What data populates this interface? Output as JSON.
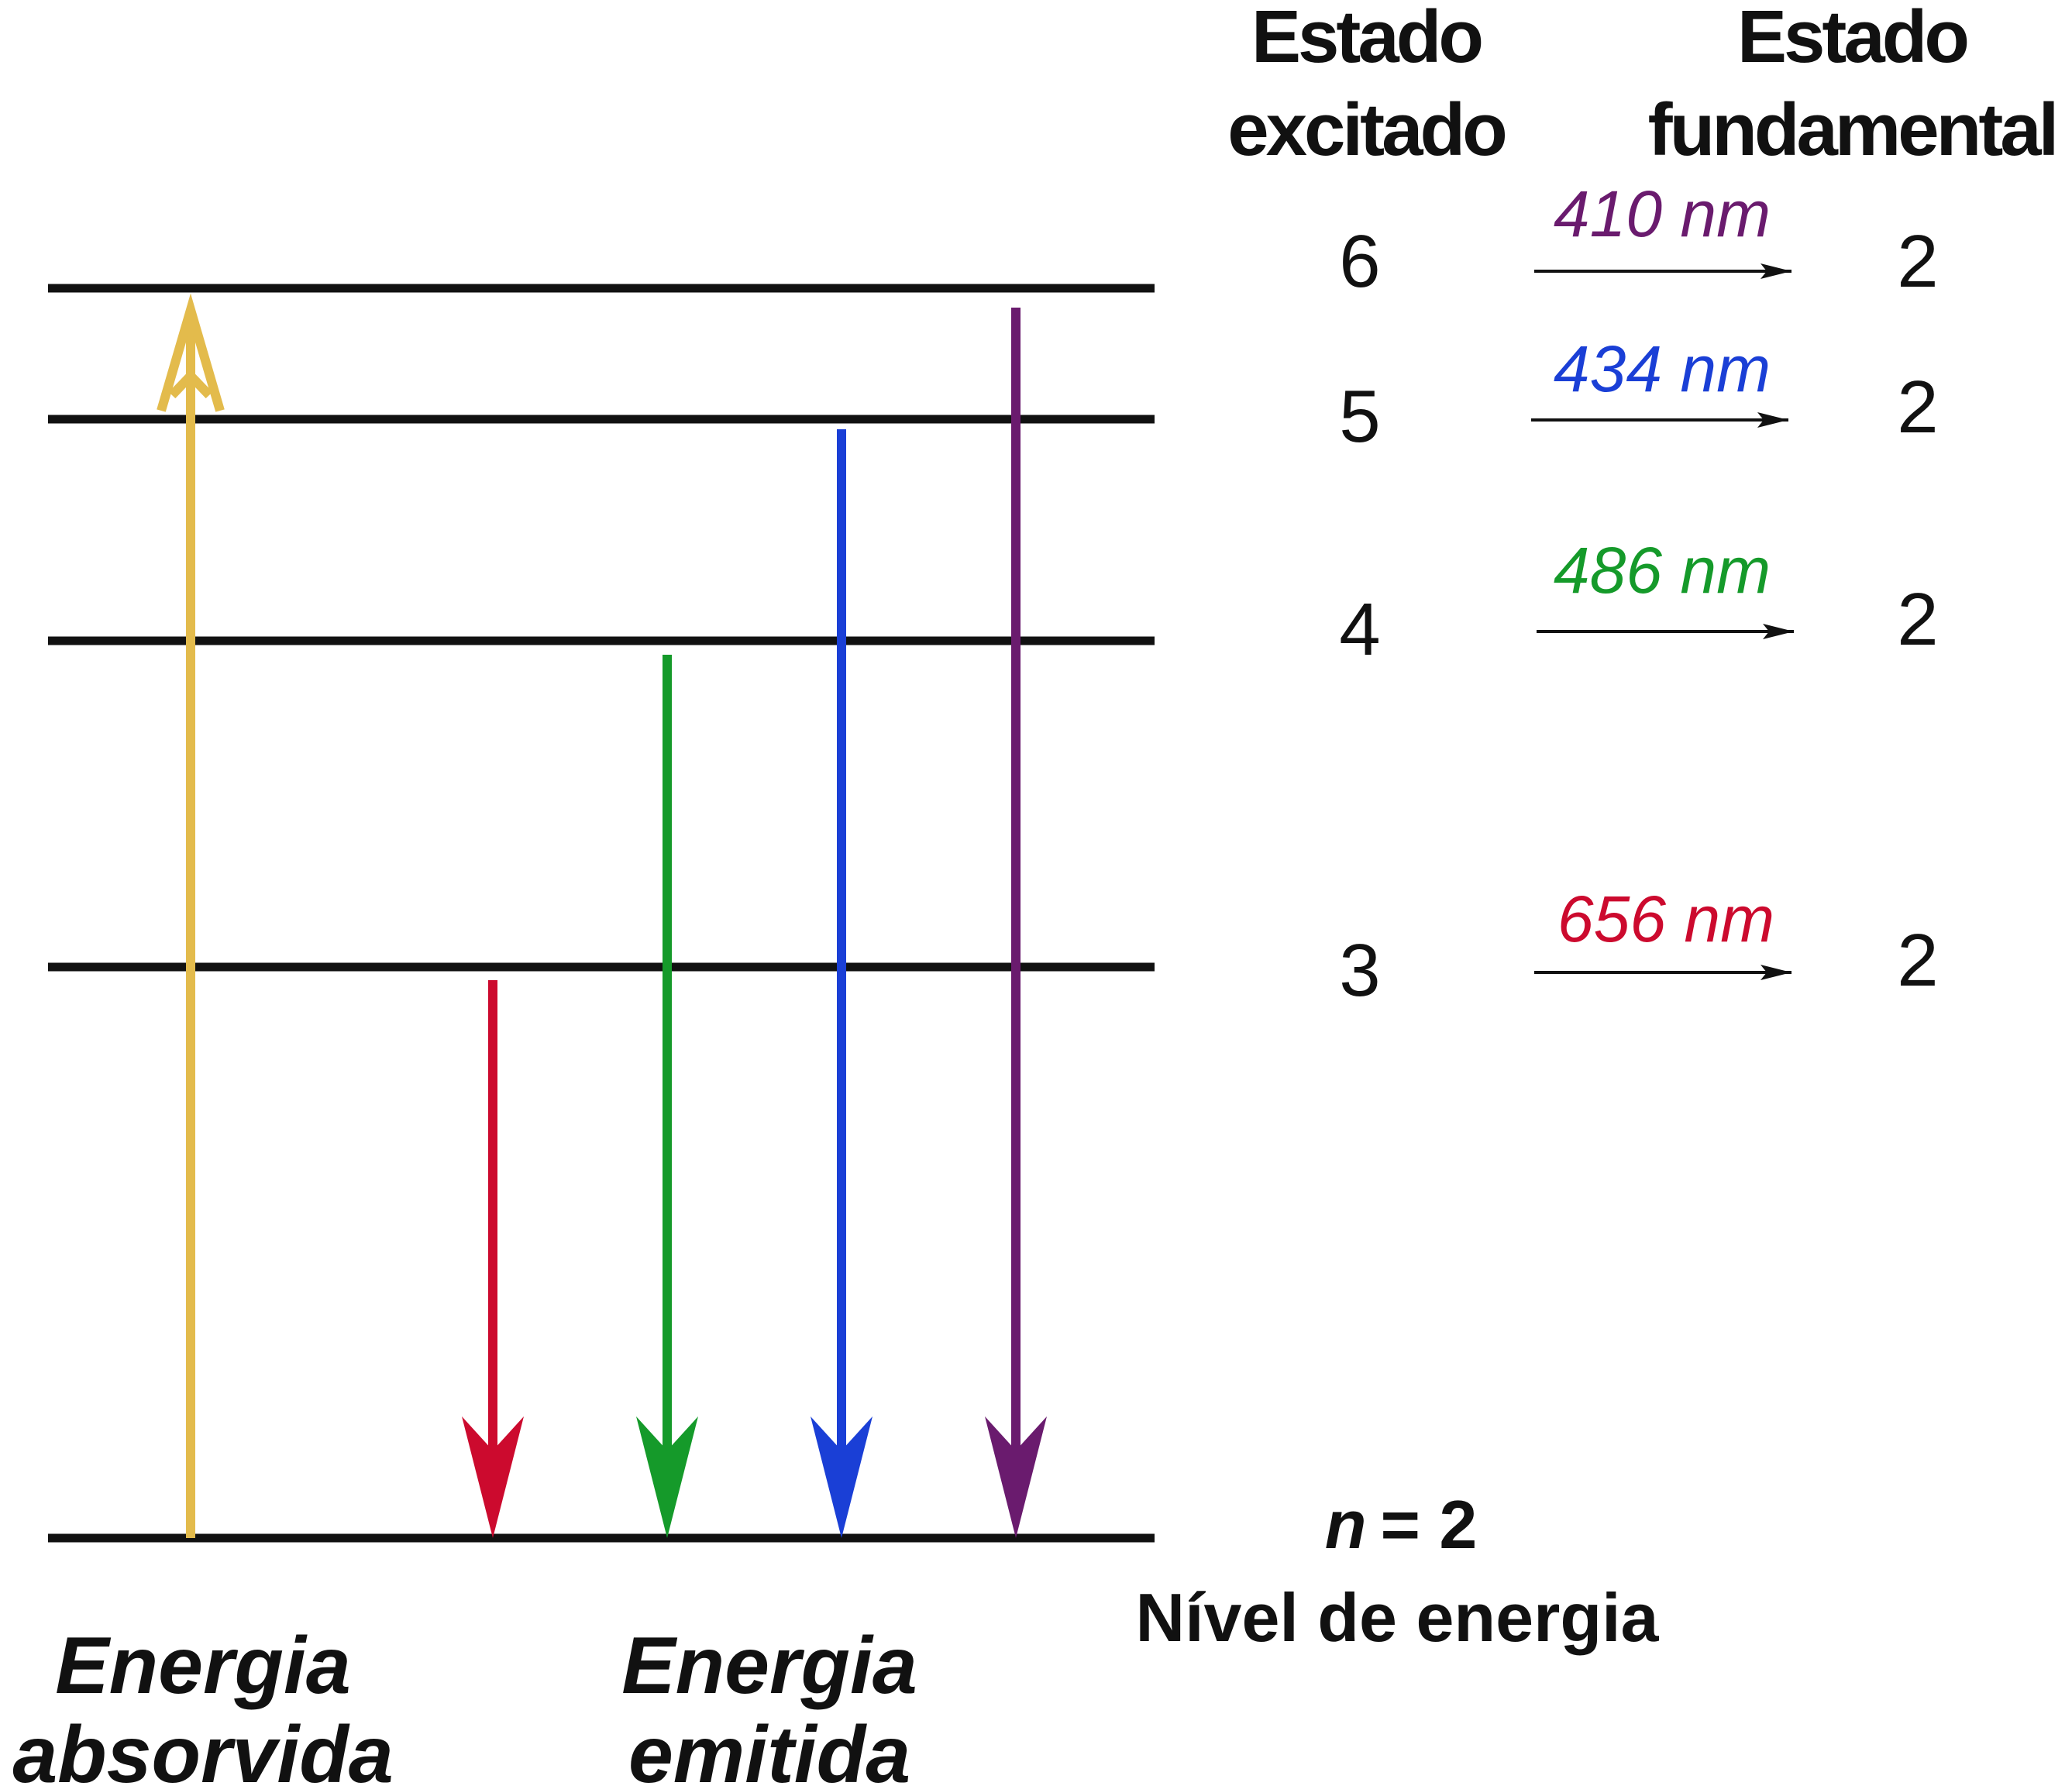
{
  "header": {
    "excited_line1": "Estado",
    "excited_line2": "excitado",
    "ground_line1": "Estado",
    "ground_line2": "fundamental"
  },
  "transitions": [
    {
      "from": "6",
      "to": "2",
      "wavelength": "410 nm",
      "color": "#6a1b6e"
    },
    {
      "from": "5",
      "to": "2",
      "wavelength": "434 nm",
      "color": "#1a3fd6"
    },
    {
      "from": "4",
      "to": "2",
      "wavelength": "486 nm",
      "color": "#159a2a"
    },
    {
      "from": "3",
      "to": "2",
      "wavelength": "656 nm",
      "color": "#cc0a2e"
    }
  ],
  "ground_level": {
    "n_symbol": "n",
    "n_value": "= 2",
    "caption": "Nível de energia"
  },
  "labels": {
    "absorbed_line1": "Energia",
    "absorbed_line2": "absorvida",
    "emitted_line1": "Energia",
    "emitted_line2": "emitida"
  },
  "colors": {
    "absorption": "#e3bb4c",
    "level_line": "#111111"
  }
}
